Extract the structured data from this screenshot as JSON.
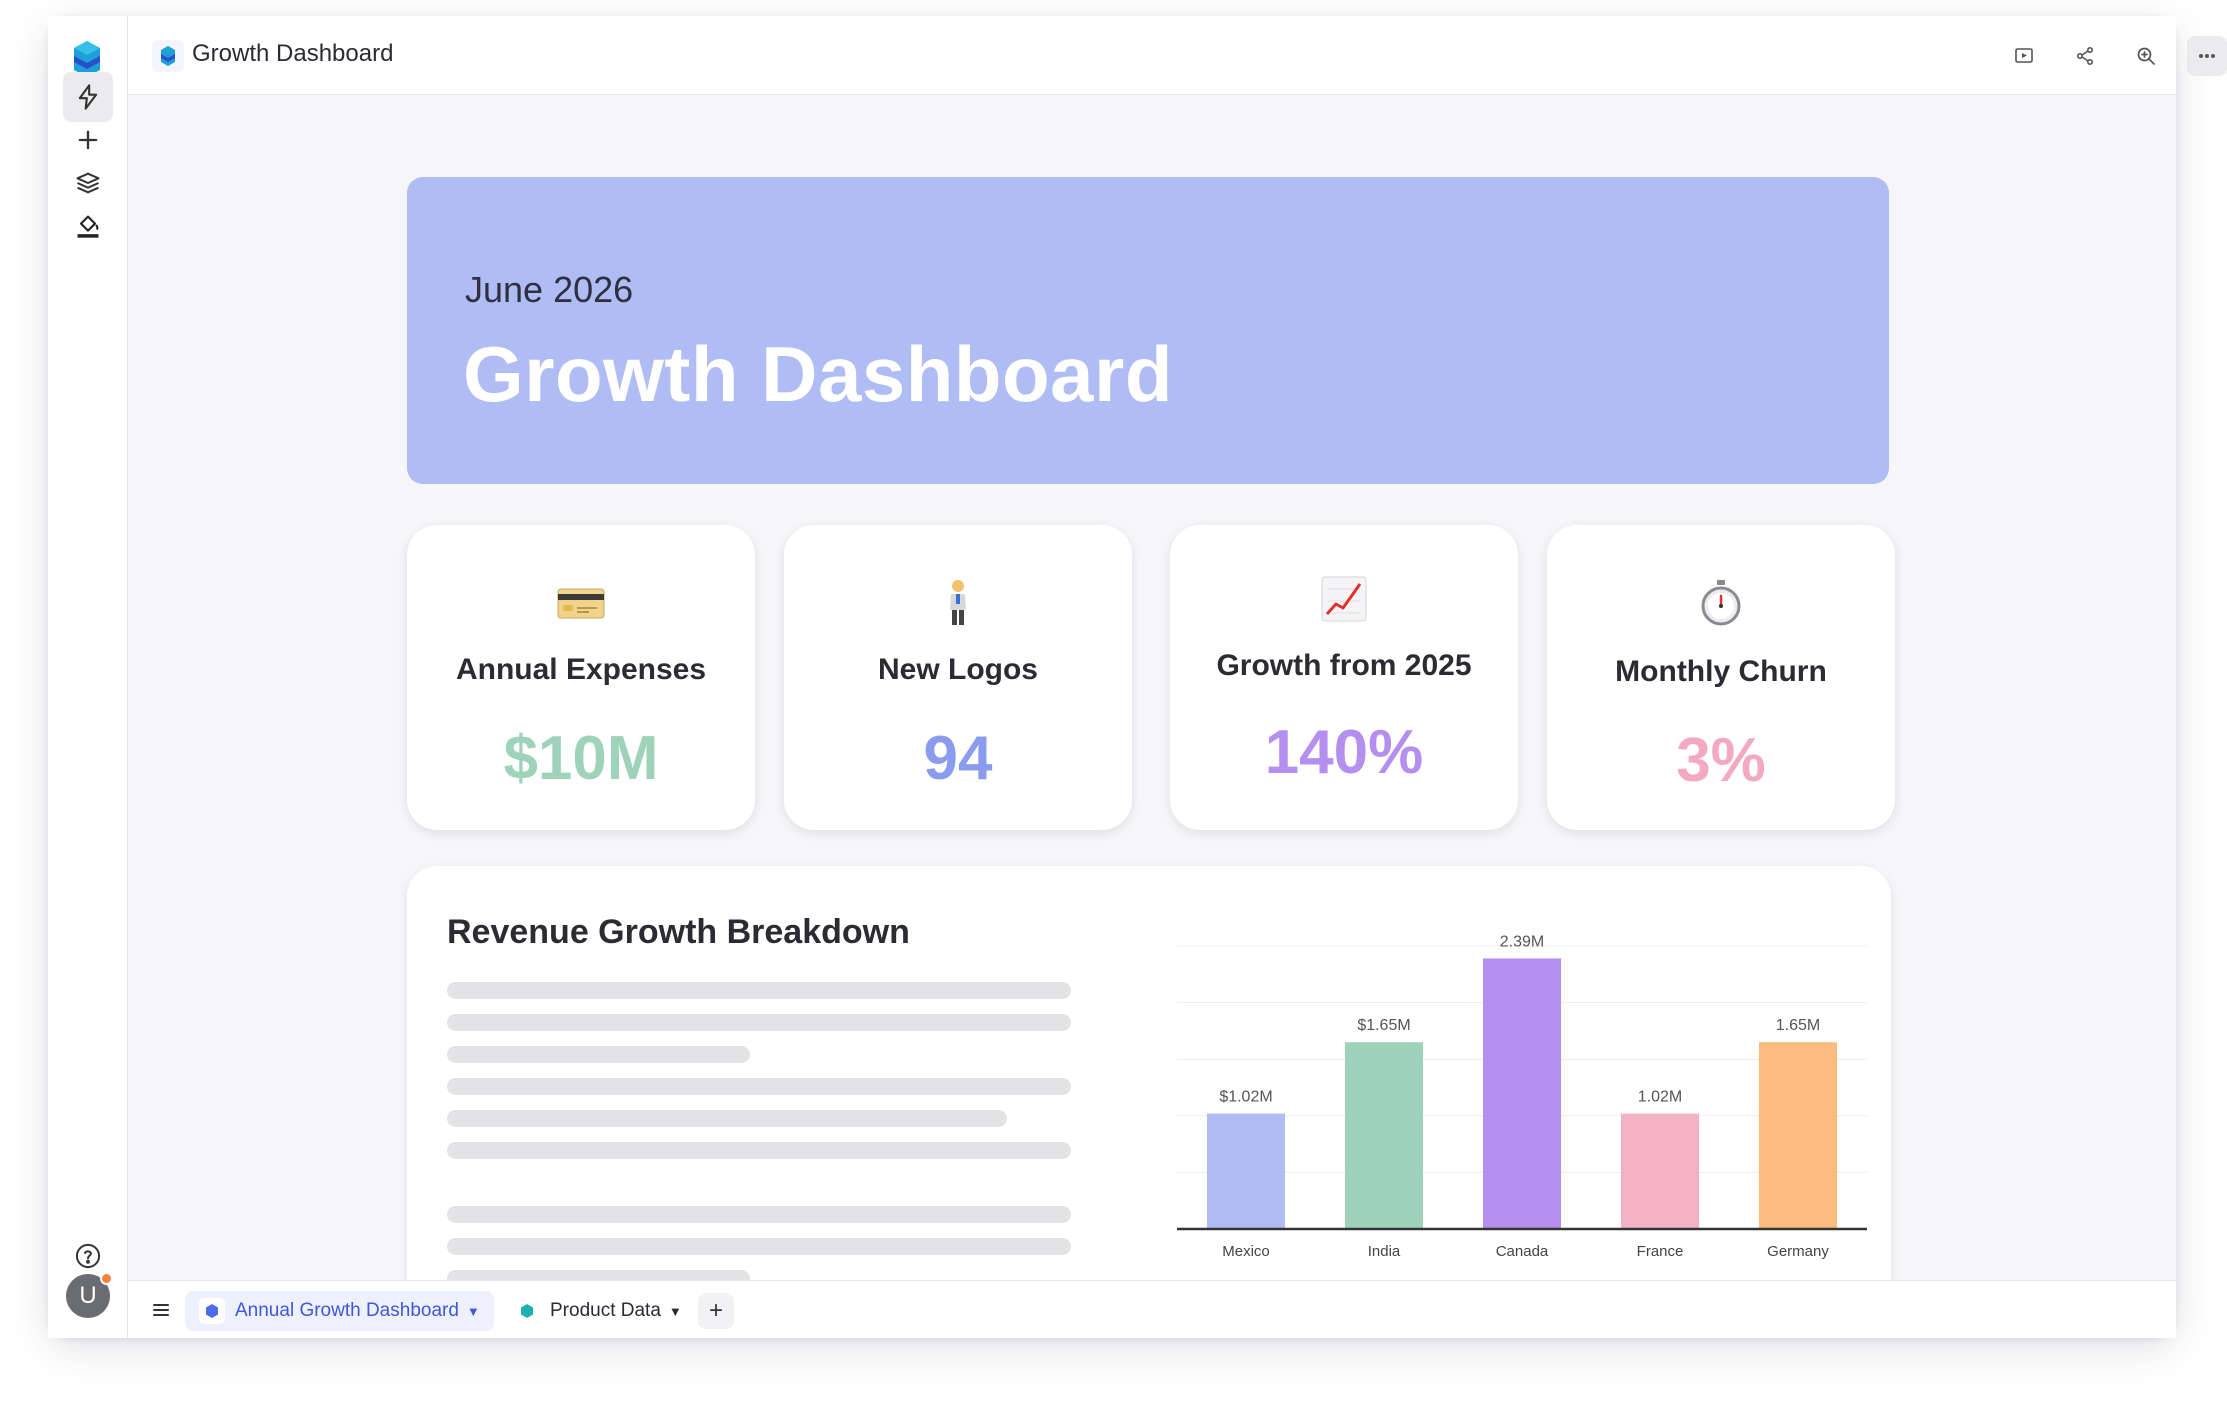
{
  "app": {
    "title": "Growth Dashboard",
    "user_initial": "U"
  },
  "colors": {
    "hero_bg": "#b0bdf4",
    "expenses": "#9ed3b9",
    "logos": "#8b9cef",
    "growth": "#b48ff0",
    "churn": "#f4a9c3",
    "accent": "#3f58d8"
  },
  "hero": {
    "subtitle": "June 2026",
    "title": "Growth Dashboard"
  },
  "kpis": [
    {
      "label": "Annual Expenses",
      "value": "$10M",
      "icon": "credit-card-icon"
    },
    {
      "label": "New Logos",
      "value": "94",
      "icon": "person-icon"
    },
    {
      "label": "Growth from 2025",
      "value": "140%",
      "icon": "chart-increasing-icon"
    },
    {
      "label": "Monthly Churn",
      "value": "3%",
      "icon": "stopwatch-icon"
    }
  ],
  "revenue": {
    "title": "Revenue Growth Breakdown"
  },
  "chart_data": {
    "type": "bar",
    "categories": [
      "Mexico",
      "India",
      "Canada",
      "France",
      "Germany"
    ],
    "values": [
      1.02,
      1.65,
      2.39,
      1.02,
      1.65
    ],
    "data_labels": [
      "$1.02M",
      "$1.65M",
      "2.39M",
      "1.02M",
      "1.65M"
    ],
    "colors": [
      "#b0bdf4",
      "#9ed3b9",
      "#b48ff0",
      "#f4b2c6",
      "#fbbb7e"
    ],
    "title": "",
    "xlabel": "",
    "ylabel": "",
    "ylim": [
      0,
      2.5
    ],
    "grid": true,
    "legend": "none"
  },
  "tabs": [
    {
      "label": "Annual Growth Dashboard",
      "active": true
    },
    {
      "label": "Product Data",
      "active": false
    }
  ],
  "add_tab_label": "+"
}
